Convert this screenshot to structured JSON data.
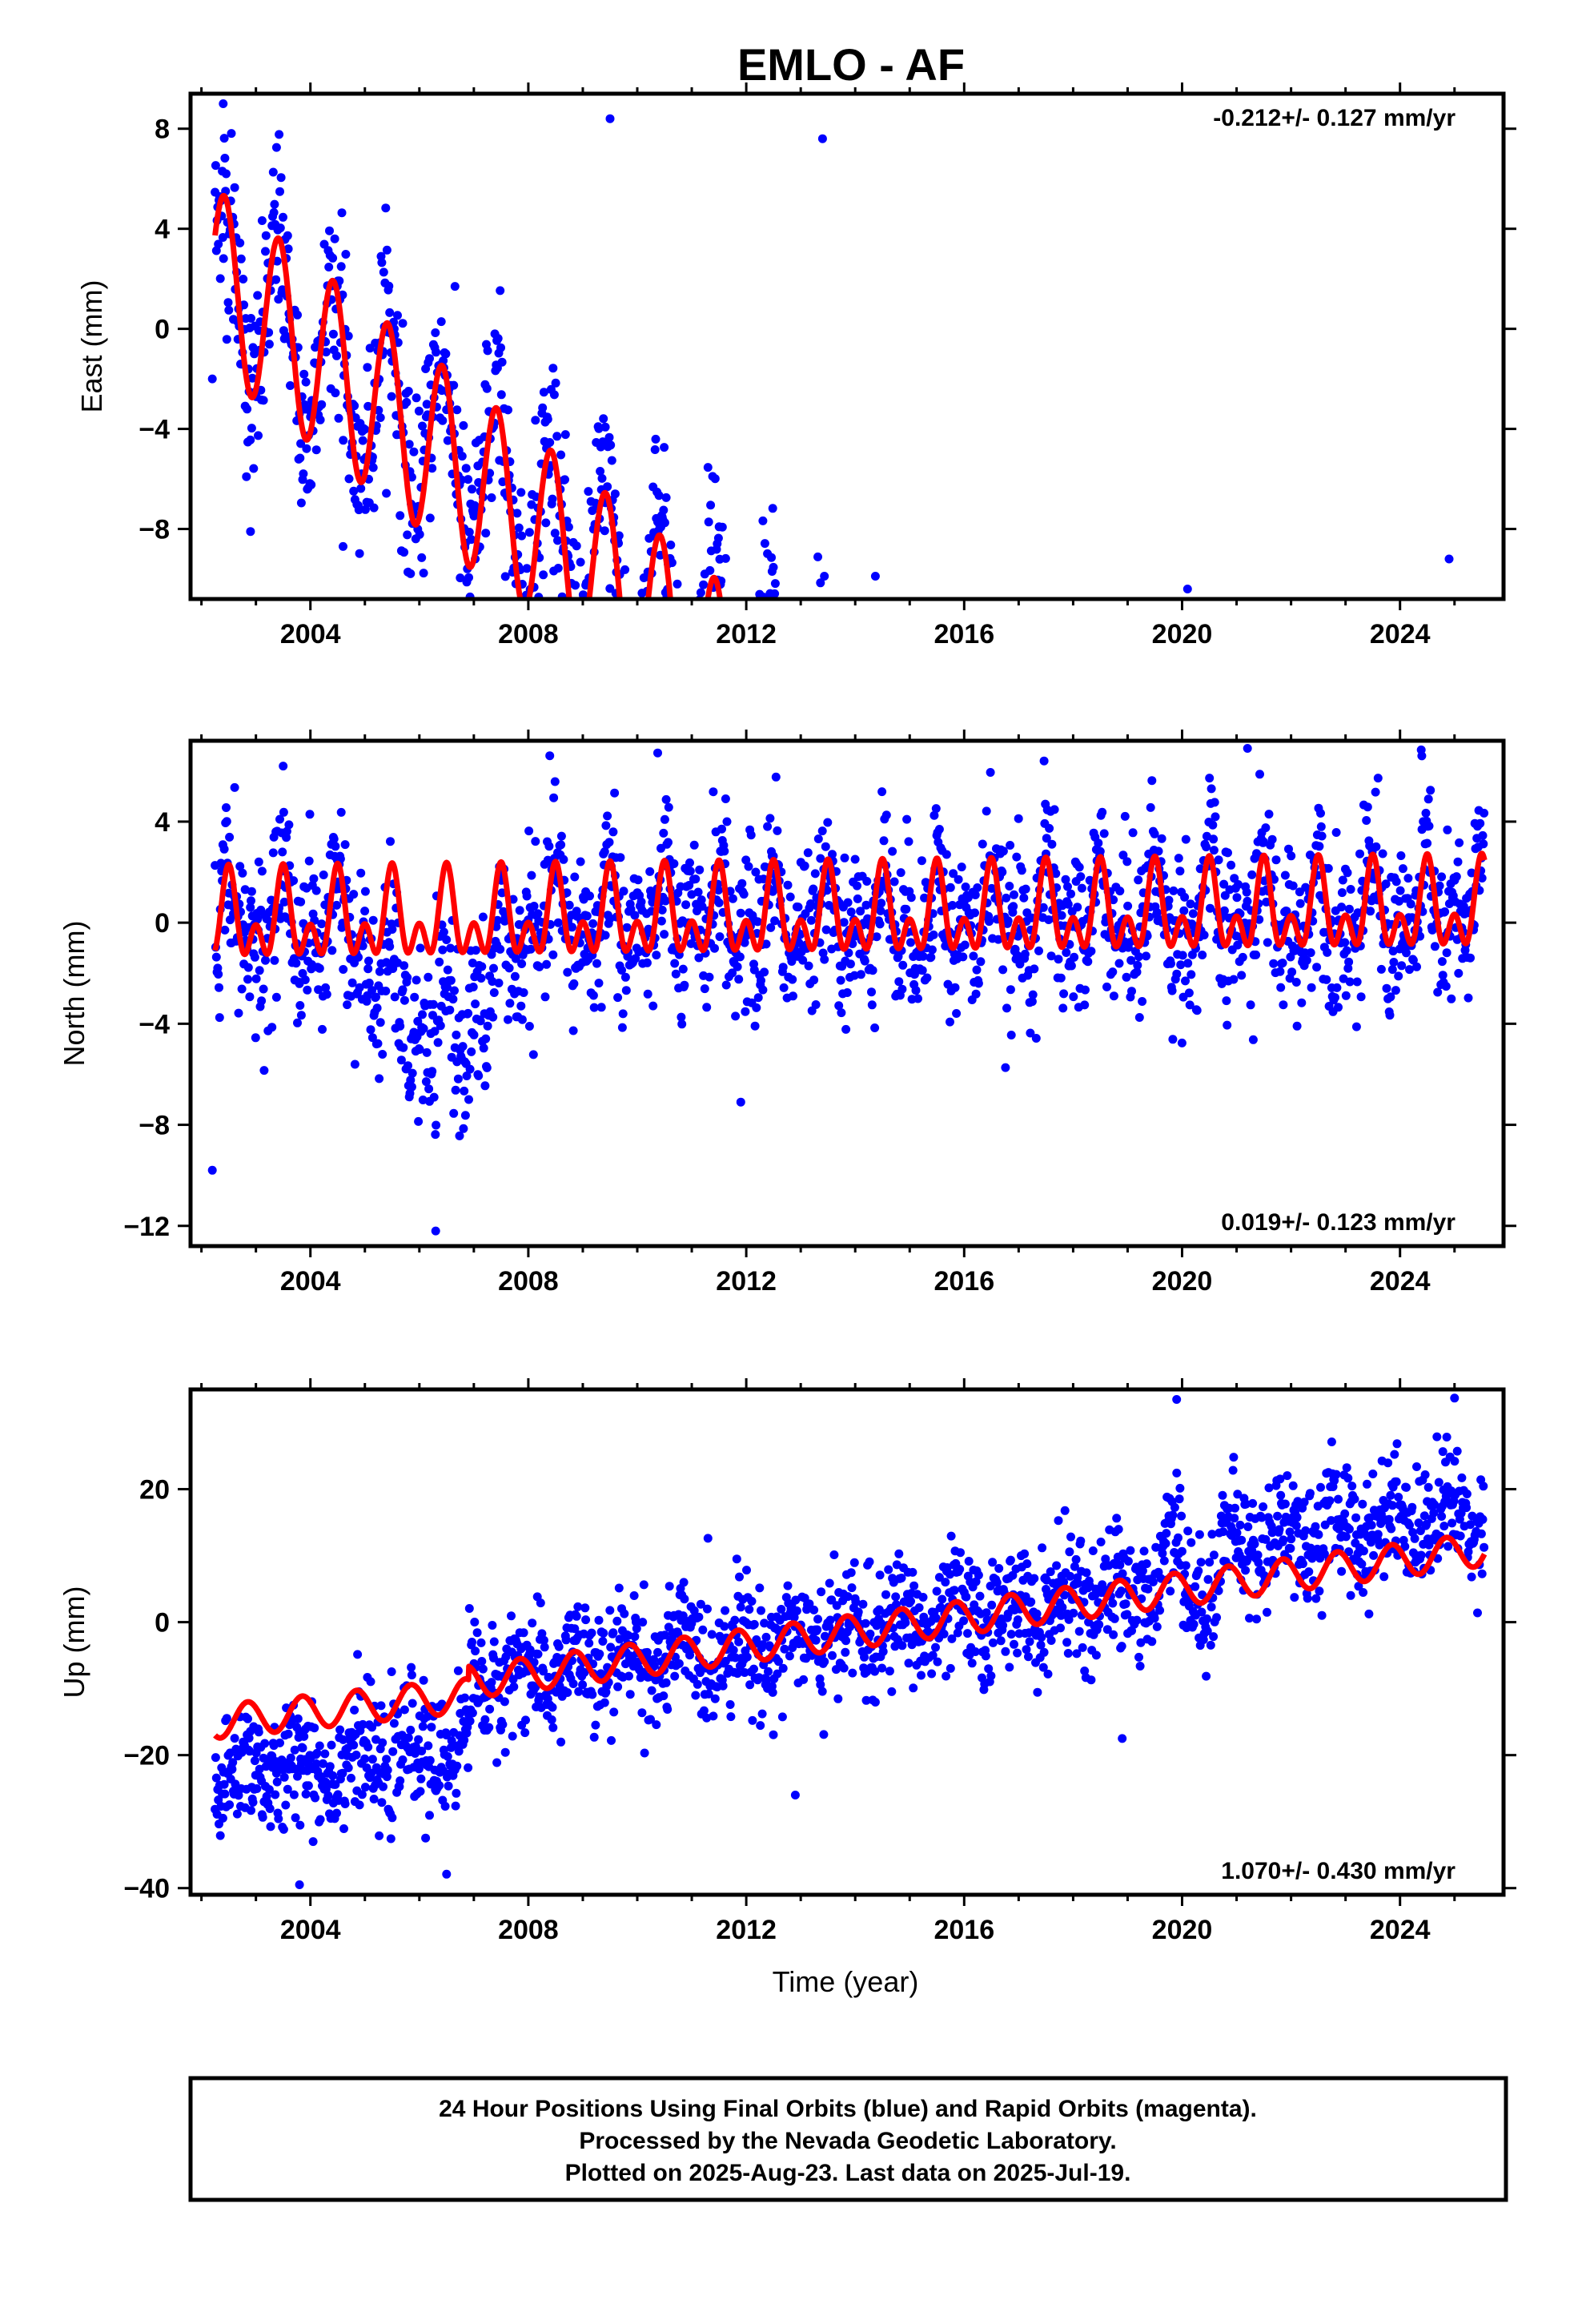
{
  "figure": {
    "title": "EMLO - AF",
    "xlabel": "Time (year)",
    "caption": [
      "24 Hour Positions Using Final Orbits (blue) and Rapid Orbits (magenta).",
      "Processed by the Nevada Geodetic Laboratory.",
      "Plotted on 2025-Aug-23. Last data on 2025-Jul-19."
    ]
  },
  "colors": {
    "points": "#0000ff",
    "model": "#ff0000",
    "frame": "#000000"
  },
  "chart_data": [
    {
      "type": "scatter",
      "component": "east",
      "ylabel": "East (mm)",
      "rate_text": "-0.212+/- 0.127 mm/yr",
      "rate_position": "top-right",
      "xlim": [
        2001.8,
        2025.9
      ],
      "ylim": [
        -10.8,
        9.4
      ],
      "xticks": [
        2004,
        2008,
        2012,
        2016,
        2020,
        2024
      ],
      "yticks": [
        -8,
        -4,
        0,
        4,
        8
      ],
      "data_start": 2002.25,
      "data_end": 2025.55,
      "trend_mm_per_yr": -0.212,
      "model": {
        "offset_at_start": 2.0,
        "annual_amp": 3.6,
        "peak_phase": 0.42
      },
      "scatter_sigma": 2.0,
      "outliers": [
        [
          2002.4,
          9.0
        ],
        [
          2002.2,
          -2.0
        ],
        [
          2002.9,
          -8.1
        ],
        [
          2004.6,
          -8.7
        ],
        [
          2013.4,
          7.6
        ],
        [
          2020.1,
          -10.4
        ],
        [
          2024.9,
          -9.2
        ],
        [
          2009.5,
          8.4
        ]
      ]
    },
    {
      "type": "scatter",
      "component": "north",
      "ylabel": "North (mm)",
      "rate_text": "0.019+/- 0.123 mm/yr",
      "rate_position": "bottom-right",
      "xlim": [
        2001.8,
        2025.9
      ],
      "ylim": [
        -12.8,
        7.2
      ],
      "xticks": [
        2004,
        2008,
        2012,
        2016,
        2020,
        2024
      ],
      "yticks": [
        -12,
        -8,
        -4,
        0,
        4
      ],
      "data_start": 2002.25,
      "data_end": 2025.55,
      "trend_mm_per_yr": 0.019,
      "model": {
        "offset_at_start": 0.0,
        "annual_amp": 1.2,
        "semiannual_amp": 1.1,
        "peak_phase": 0.5
      },
      "scatter_sigma": 1.6,
      "depression": {
        "start": 2004.7,
        "end": 2008.0,
        "depth": -4.5
      },
      "outliers": [
        [
          2002.2,
          -9.8
        ],
        [
          2006.3,
          -12.2
        ],
        [
          2021.2,
          6.9
        ],
        [
          2003.5,
          6.2
        ],
        [
          2024.4,
          6.6
        ],
        [
          2011.9,
          -7.1
        ]
      ]
    },
    {
      "type": "scatter",
      "component": "up",
      "ylabel": "Up (mm)",
      "rate_text": "1.070+/- 0.430 mm/yr",
      "rate_position": "bottom-right",
      "xlim": [
        2001.8,
        2025.9
      ],
      "ylim": [
        -41,
        35
      ],
      "xticks": [
        2004,
        2008,
        2012,
        2016,
        2020,
        2024
      ],
      "yticks": [
        -40,
        -20,
        0,
        20
      ],
      "data_start": 2002.25,
      "data_end": 2025.55,
      "model_segments": [
        {
          "start": 2002.25,
          "end": 2006.9,
          "level_start": -15,
          "level_end": -11
        },
        {
          "start": 2006.9,
          "end": 2020.0,
          "level_start": -9,
          "level_end": 5
        },
        {
          "start": 2020.0,
          "end": 2025.55,
          "level_start": 5,
          "level_end": 11
        }
      ],
      "model": {
        "annual_amp": 2.5,
        "peak_phase": 0.85
      },
      "scatter_sigma": 4.5,
      "data_offsets": [
        {
          "start": 2002.25,
          "end": 2006.9,
          "shift": -8
        },
        {
          "start": 2019.6,
          "end": 2020.0,
          "shift": 8
        },
        {
          "start": 2020.7,
          "end": 2025.55,
          "shift": 6
        }
      ],
      "outliers": [
        [
          2003.8,
          -39.5
        ],
        [
          2006.5,
          -37.9
        ],
        [
          2012.9,
          -26.0
        ],
        [
          2019.9,
          33.5
        ],
        [
          2025.0,
          33.7
        ],
        [
          2018.9,
          -17.5
        ]
      ]
    }
  ]
}
